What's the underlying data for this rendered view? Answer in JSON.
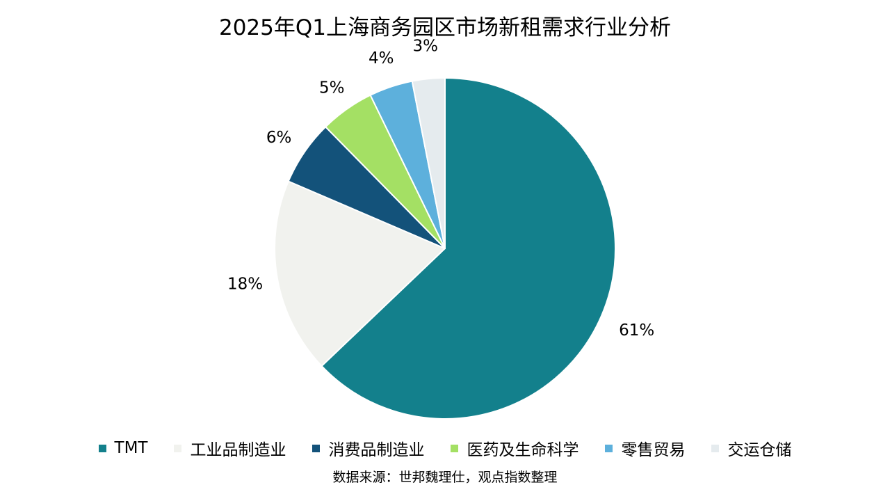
{
  "chart_data": {
    "type": "pie",
    "title": "2025年Q1上海商务园区市场新租需求行业分析",
    "categories": [
      "TMT",
      "工业品制造业",
      "消费品制造业",
      "医药及生命科学",
      "零售贸易",
      "交运仓储"
    ],
    "values": [
      61,
      18,
      6,
      5,
      4,
      3
    ],
    "value_labels": [
      "61%",
      "18%",
      "6%",
      "5%",
      "4%",
      "3%"
    ],
    "unit": "%",
    "colors": [
      "#13808C",
      "#F1F2EE",
      "#13527A",
      "#A4E064",
      "#5DB0DC",
      "#E5EBEE"
    ],
    "start_angle": "12 o'clock",
    "direction": "clockwise",
    "legend_position": "bottom",
    "source": "数据来源：世邦魏理仕，观点指数整理"
  }
}
